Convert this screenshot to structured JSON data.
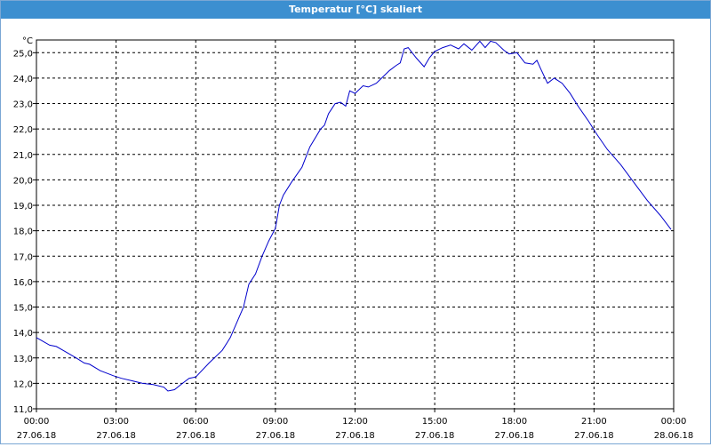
{
  "window": {
    "title": "Temperatur [°C] skaliert"
  },
  "chart_data": {
    "type": "line",
    "title": "Temperatur [°C] skaliert",
    "ylabel": "°C",
    "xlabel": "",
    "ylim": [
      11.0,
      25.5
    ],
    "xlim": [
      0,
      24
    ],
    "grid": true,
    "line_color": "#0000cc",
    "y_ticks": [
      "11,0",
      "12,0",
      "13,0",
      "14,0",
      "15,0",
      "16,0",
      "17,0",
      "18,0",
      "19,0",
      "20,0",
      "21,0",
      "22,0",
      "23,0",
      "24,0",
      "25,0"
    ],
    "x_ticks": [
      {
        "time": "00:00",
        "date": "27.06.18"
      },
      {
        "time": "03:00",
        "date": "27.06.18"
      },
      {
        "time": "06:00",
        "date": "27.06.18"
      },
      {
        "time": "09:00",
        "date": "27.06.18"
      },
      {
        "time": "12:00",
        "date": "27.06.18"
      },
      {
        "time": "15:00",
        "date": "27.06.18"
      },
      {
        "time": "18:00",
        "date": "27.06.18"
      },
      {
        "time": "21:00",
        "date": "27.06.18"
      },
      {
        "time": "00:00",
        "date": "28.06.18"
      }
    ],
    "series": [
      {
        "x": [
          0,
          0.5,
          0.75,
          1.0,
          1.5,
          1.8,
          2.0,
          2.4,
          2.9,
          3.2,
          3.6,
          4.0,
          4.4,
          4.8,
          4.95,
          5.2,
          5.5,
          5.75,
          6.0,
          6.5,
          7.0,
          7.3,
          7.8,
          8.0,
          8.25,
          8.5,
          8.75,
          9.0,
          9.15,
          9.3,
          9.6,
          10.0,
          10.3,
          10.7,
          10.85,
          11.0,
          11.25,
          11.45,
          11.65,
          11.8,
          12.0,
          12.3,
          12.5,
          12.8,
          13.0,
          13.3,
          13.55,
          13.7,
          13.85,
          14.0,
          14.3,
          14.6,
          14.8,
          15.0,
          15.3,
          15.6,
          15.9,
          16.1,
          16.4,
          16.7,
          16.9,
          17.1,
          17.3,
          17.6,
          17.8,
          18.1,
          18.4,
          18.7,
          18.85,
          19.0,
          19.25,
          19.5,
          19.8,
          20.1,
          20.4,
          20.8,
          21.1,
          21.5,
          22.0,
          22.5,
          23.0,
          23.5,
          23.9
        ],
        "y": [
          13.8,
          13.5,
          13.45,
          13.3,
          13.0,
          12.8,
          12.75,
          12.5,
          12.3,
          12.2,
          12.1,
          12.0,
          11.95,
          11.85,
          11.7,
          11.75,
          12.0,
          12.2,
          12.25,
          12.8,
          13.3,
          13.8,
          15.0,
          15.9,
          16.3,
          17.0,
          17.6,
          18.1,
          19.0,
          19.4,
          19.9,
          20.5,
          21.3,
          22.0,
          22.15,
          22.6,
          23.0,
          23.05,
          22.9,
          23.5,
          23.4,
          23.7,
          23.65,
          23.8,
          24.0,
          24.3,
          24.5,
          24.6,
          25.15,
          25.2,
          24.8,
          24.45,
          24.8,
          25.05,
          25.2,
          25.3,
          25.15,
          25.35,
          25.1,
          25.45,
          25.2,
          25.45,
          25.4,
          25.1,
          24.95,
          25.0,
          24.6,
          24.55,
          24.7,
          24.35,
          23.8,
          24.0,
          23.8,
          23.4,
          22.9,
          22.3,
          21.8,
          21.2,
          20.6,
          19.9,
          19.2,
          18.6,
          18.05
        ]
      }
    ]
  }
}
